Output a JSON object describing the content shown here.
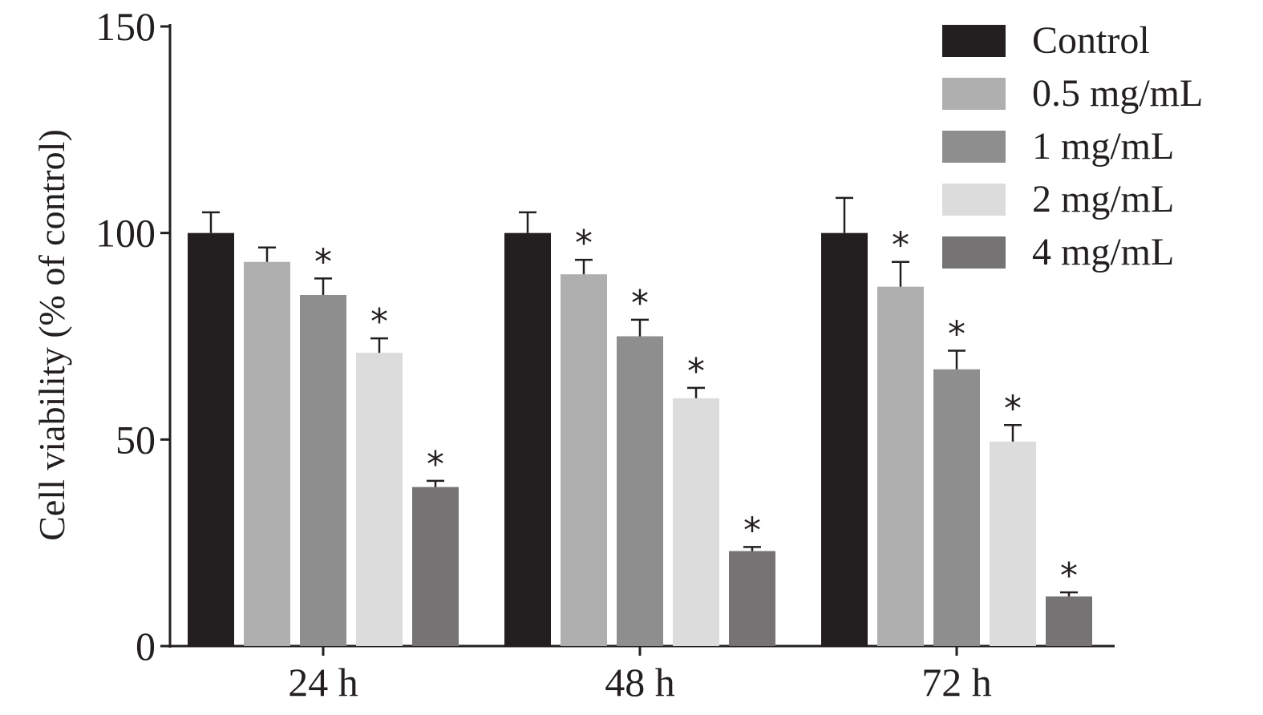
{
  "chart_data": {
    "type": "bar",
    "title": "",
    "xlabel": "",
    "ylabel": "Cell viability (% of control)",
    "ylim": [
      0,
      150
    ],
    "yticks": [
      "0",
      "50",
      "100",
      "150"
    ],
    "categories": [
      "24 h",
      "48 h",
      "72 h"
    ],
    "legend_position": "top-right",
    "grid": false,
    "significance_marker": "*",
    "series": [
      {
        "name": "Control",
        "color": "#231f20",
        "values": [
          100,
          100,
          100
        ],
        "errors": [
          5,
          5,
          8.5
        ],
        "significant": [
          false,
          false,
          false
        ]
      },
      {
        "name": "0.5 mg/mL",
        "color": "#b0afaf",
        "values": [
          93,
          90,
          87
        ],
        "errors": [
          3.5,
          3.5,
          6
        ],
        "significant": [
          false,
          true,
          true
        ]
      },
      {
        "name": "1 mg/mL",
        "color": "#8f8e8e",
        "values": [
          85,
          75,
          67
        ],
        "errors": [
          4,
          4,
          4.5
        ],
        "significant": [
          true,
          true,
          true
        ]
      },
      {
        "name": "2 mg/mL",
        "color": "#dcdcdc",
        "values": [
          71,
          60,
          49.5
        ],
        "errors": [
          3.5,
          2.5,
          4
        ],
        "significant": [
          true,
          true,
          true
        ]
      },
      {
        "name": "4 mg/mL",
        "color": "#757374",
        "values": [
          38.5,
          23,
          12
        ],
        "errors": [
          1.5,
          1,
          1
        ],
        "significant": [
          true,
          true,
          true
        ]
      }
    ]
  }
}
